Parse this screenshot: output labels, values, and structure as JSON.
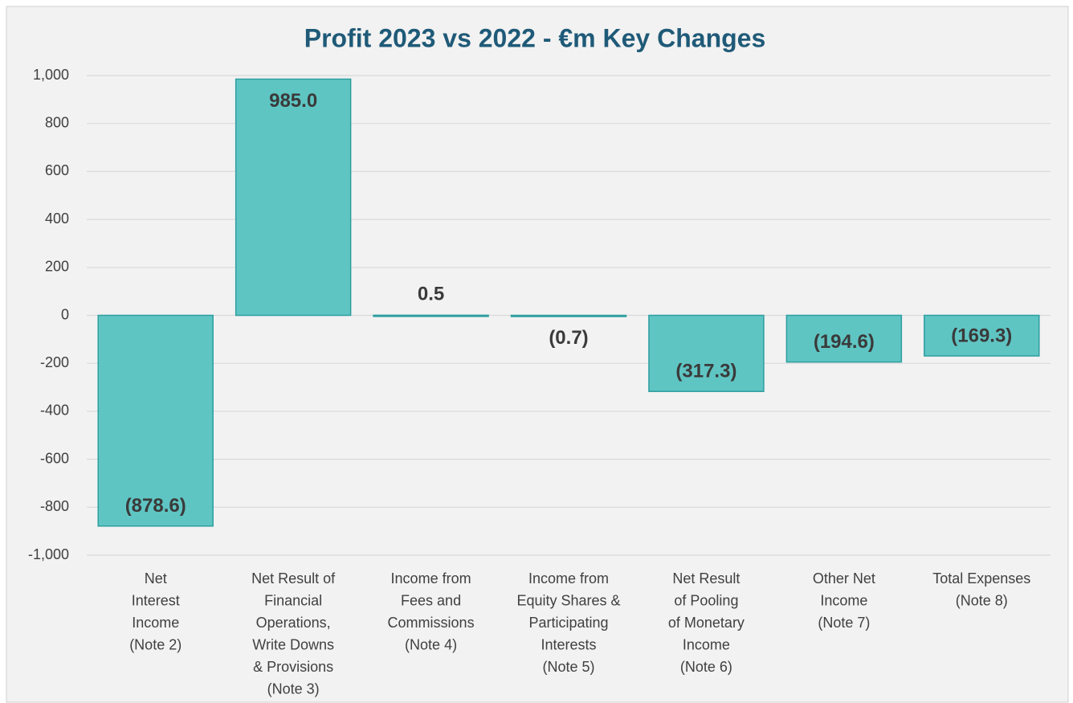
{
  "chart_data": {
    "type": "bar",
    "title": "Profit 2023 vs 2022 - €m Key Changes",
    "categories": [
      "Net\nInterest\nIncome\n(Note 2)",
      "Net Result of\nFinancial\nOperations,\nWrite Downs\n& Provisions\n(Note 3)",
      "Income from\nFees and\nCommissions\n(Note 4)",
      "Income from\nEquity Shares &\nParticipating\nInterests\n(Note 5)",
      "Net Result\nof Pooling\nof Monetary\nIncome\n(Note 6)",
      "Other Net\nIncome\n(Note 7)",
      "Total Expenses\n(Note 8)"
    ],
    "values": [
      -878.6,
      985.0,
      0.5,
      -0.7,
      -317.3,
      -194.6,
      -169.3
    ],
    "value_labels": [
      "(878.6)",
      "985.0",
      "0.5",
      "(0.7)",
      "(317.3)",
      "(194.6)",
      "(169.3)"
    ],
    "color": "#5fc5c3",
    "ylim": [
      -1000,
      1000
    ],
    "yticks": [
      {
        "value": -1000,
        "label": "-1,000"
      },
      -800,
      -600,
      -400,
      -200,
      0,
      200,
      400,
      600,
      800,
      {
        "value": 1000,
        "label": "1,000"
      }
    ],
    "grid": true
  }
}
